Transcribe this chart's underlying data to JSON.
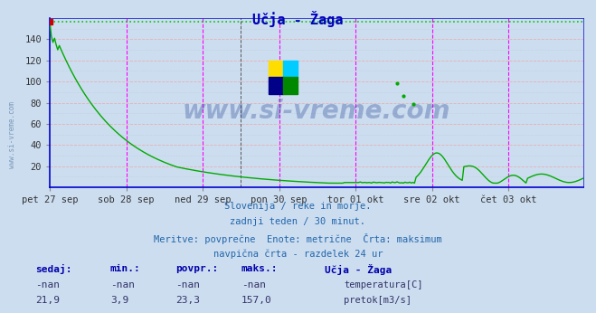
{
  "title": "Učja - Žaga",
  "bg_color": "#ccddf0",
  "plot_bg_color": "#ccddf0",
  "grid_color_pink": "#e8b0b0",
  "grid_color_gray": "#b8c8d8",
  "ylim": [
    0,
    160
  ],
  "ytick_vals": [
    20,
    40,
    60,
    80,
    100,
    120,
    140
  ],
  "xlabel_ticks": [
    "pet 27 sep",
    "sob 28 sep",
    "ned 29 sep",
    "pon 30 sep",
    "tor 01 okt",
    "sre 02 okt",
    "čet 03 okt"
  ],
  "x_day_positions": [
    0,
    48,
    96,
    144,
    192,
    240,
    288
  ],
  "total_points": 336,
  "subtitle_lines": [
    "Slovenija / reke in morje.",
    "zadnji teden / 30 minut.",
    "Meritve: povprečne  Enote: metrične  Črta: maksimum",
    "navpična črta - razdelek 24 ur"
  ],
  "legend_title": "Učja - Žaga",
  "stats_headers": [
    "sedaj:",
    "min.:",
    "povpr.:",
    "maks.:"
  ],
  "stats_temp": [
    "-nan",
    "-nan",
    "-nan",
    "-nan"
  ],
  "stats_pretok": [
    "21,9",
    "3,9",
    "23,3",
    "157,0"
  ],
  "temp_color": "#cc0000",
  "pretok_color": "#00aa00",
  "max_dotted_color": "#00cc00",
  "vline_color": "#ff00ff",
  "axis_color": "#0000cc",
  "text_color": "#2266aa",
  "label_color": "#333399",
  "watermark_text": "www.si-vreme.com",
  "watermark_color": "#1a3a8a",
  "watermark_alpha": 0.3,
  "left_label_color": "#6688aa"
}
